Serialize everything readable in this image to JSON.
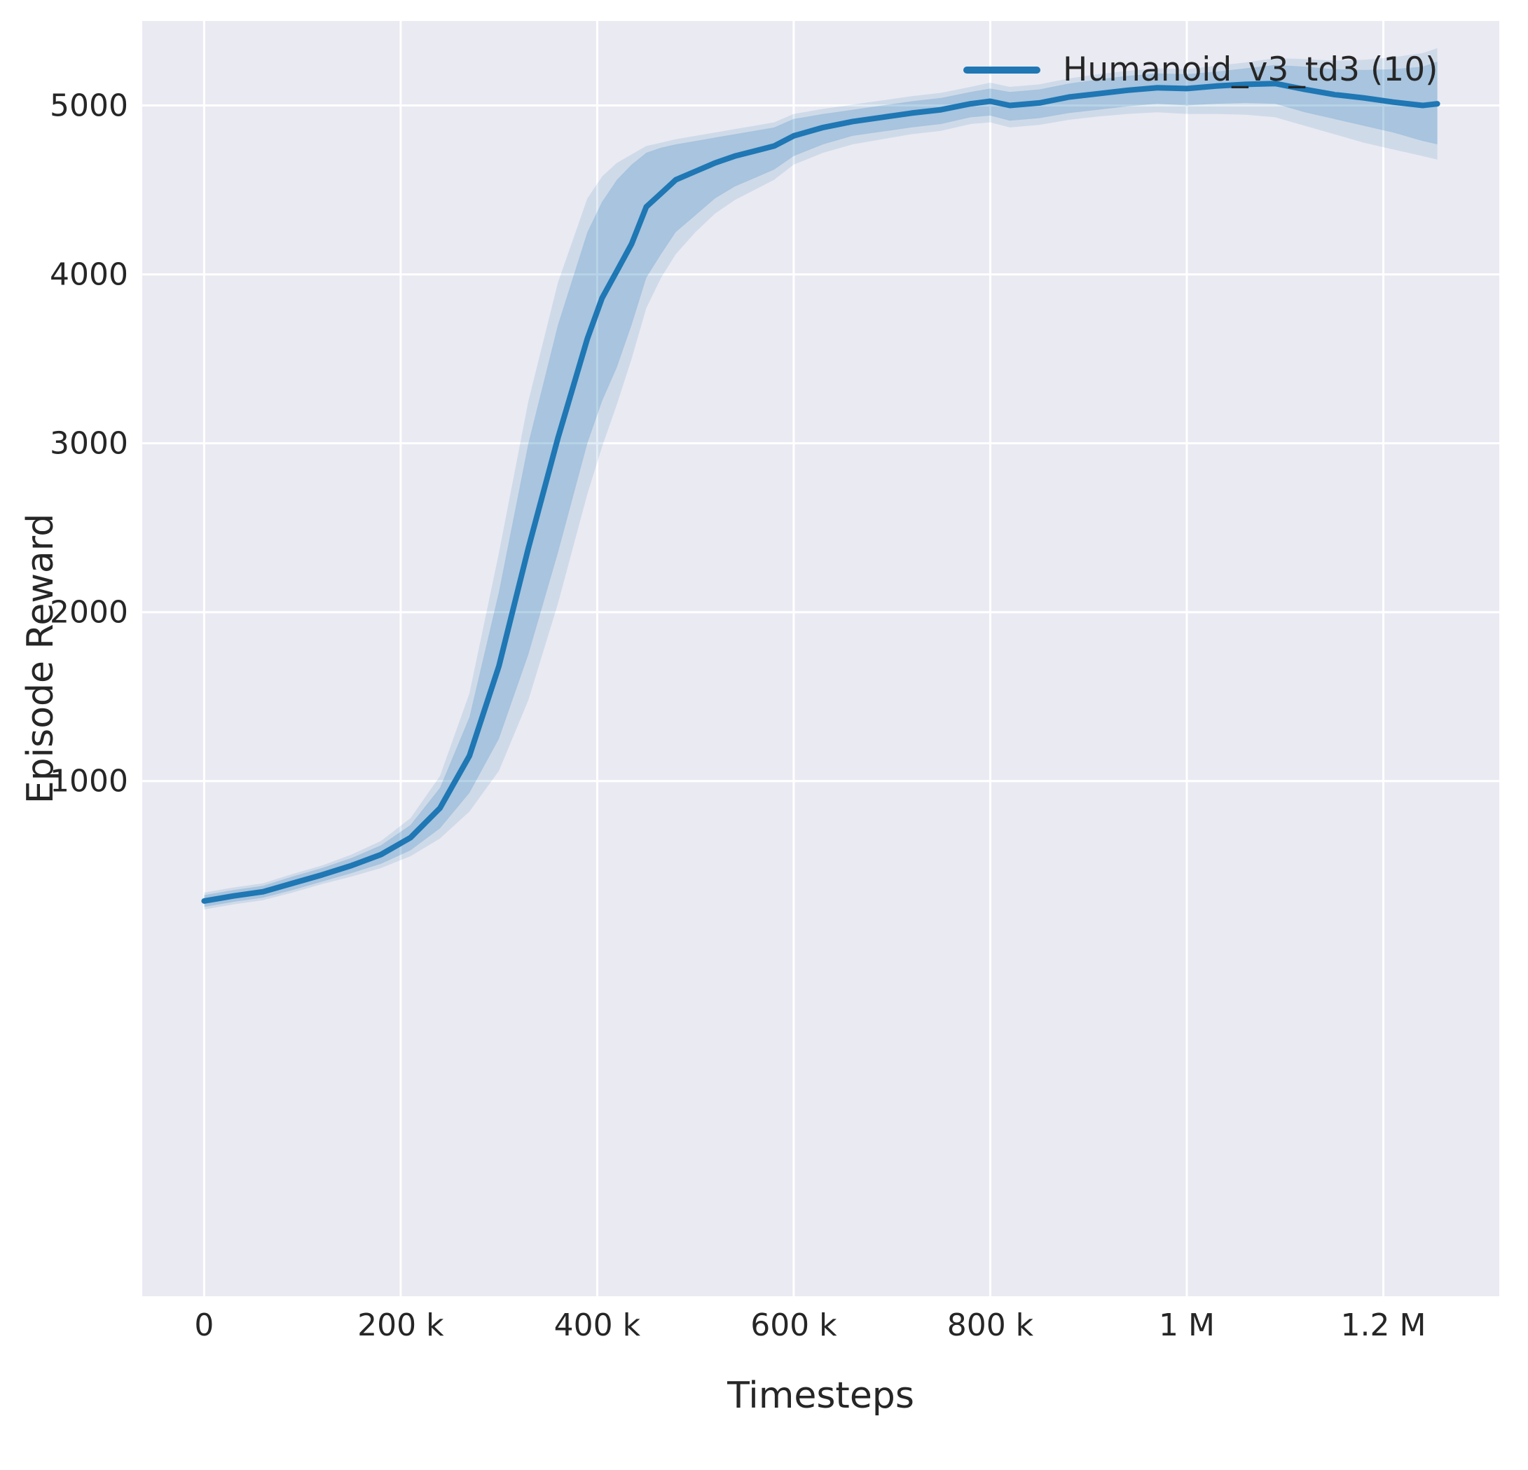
{
  "figure": {
    "background": "#ffffff",
    "plot_background": "#eaeaf2",
    "grid_color": "#ffffff",
    "text_color": "#262626"
  },
  "chart_data": {
    "type": "line",
    "title": "",
    "xlabel": "Timesteps",
    "ylabel": "Episode Reward",
    "xlim": [
      -63000,
      1318000
    ],
    "ylim": [
      -2050,
      5500
    ],
    "grid": true,
    "legend_position": "upper right",
    "x_ticks": [
      {
        "value": 0,
        "label": "0"
      },
      {
        "value": 200000,
        "label": "200 k"
      },
      {
        "value": 400000,
        "label": "400 k"
      },
      {
        "value": 600000,
        "label": "600 k"
      },
      {
        "value": 800000,
        "label": "800 k"
      },
      {
        "value": 1000000,
        "label": "1 M"
      },
      {
        "value": 1200000,
        "label": "1.2 M"
      }
    ],
    "y_ticks": [
      {
        "value": 1000,
        "label": "1000"
      },
      {
        "value": 2000,
        "label": "2000"
      },
      {
        "value": 3000,
        "label": "3000"
      },
      {
        "value": 4000,
        "label": "4000"
      },
      {
        "value": 5000,
        "label": "5000"
      }
    ],
    "x": [
      0,
      30000,
      60000,
      90000,
      120000,
      150000,
      180000,
      210000,
      240000,
      270000,
      300000,
      330000,
      360000,
      390000,
      405000,
      420000,
      435000,
      450000,
      465000,
      480000,
      500000,
      520000,
      540000,
      560000,
      580000,
      600000,
      630000,
      660000,
      690000,
      720000,
      750000,
      780000,
      800000,
      820000,
      850000,
      880000,
      910000,
      940000,
      970000,
      1000000,
      1030000,
      1060000,
      1090000,
      1120000,
      1150000,
      1180000,
      1210000,
      1240000,
      1255000
    ],
    "series": [
      {
        "name": "Humanoid_v3_td3 (10)",
        "color": "#1f77b4",
        "values": [
          290,
          320,
          345,
          395,
          445,
          500,
          565,
          665,
          840,
          1150,
          1680,
          2380,
          3030,
          3620,
          3860,
          4020,
          4180,
          4400,
          4480,
          4560,
          4610,
          4660,
          4700,
          4730,
          4760,
          4820,
          4870,
          4905,
          4930,
          4955,
          4975,
          5010,
          5025,
          5000,
          5015,
          5050,
          5070,
          5090,
          5105,
          5100,
          5115,
          5125,
          5130,
          5095,
          5065,
          5045,
          5020,
          5000,
          5010
        ],
        "bands": [
          {
            "name": "outer-band",
            "alpha": 0.13,
            "lower": [
              240,
              270,
              295,
              340,
              390,
              435,
              485,
              555,
              660,
              820,
              1060,
              1480,
              2050,
              2700,
              2980,
              3230,
              3500,
              3800,
              3980,
              4120,
              4250,
              4360,
              4440,
              4500,
              4560,
              4650,
              4720,
              4770,
              4800,
              4830,
              4850,
              4890,
              4900,
              4870,
              4885,
              4915,
              4935,
              4950,
              4960,
              4950,
              4950,
              4945,
              4930,
              4880,
              4830,
              4780,
              4740,
              4700,
              4680
            ],
            "upper": [
              340,
              370,
              395,
              450,
              500,
              565,
              645,
              780,
              1030,
              1520,
              2350,
              3250,
              3950,
              4450,
              4580,
              4660,
              4710,
              4760,
              4780,
              4800,
              4820,
              4840,
              4860,
              4880,
              4900,
              4950,
              4980,
              5005,
              5030,
              5055,
              5075,
              5110,
              5135,
              5110,
              5125,
              5160,
              5185,
              5205,
              5220,
              5215,
              5235,
              5255,
              5280,
              5275,
              5265,
              5270,
              5285,
              5310,
              5340
            ]
          },
          {
            "name": "inner-band",
            "alpha": 0.22,
            "lower": [
              255,
              285,
              310,
              355,
              405,
              455,
              510,
              590,
              720,
              930,
              1250,
              1750,
              2350,
              3000,
              3250,
              3450,
              3700,
              3980,
              4120,
              4250,
              4350,
              4450,
              4520,
              4570,
              4620,
              4700,
              4770,
              4820,
              4845,
              4870,
              4890,
              4930,
              4940,
              4910,
              4925,
              4955,
              4975,
              4995,
              5010,
              5000,
              5010,
              5015,
              5010,
              4960,
              4920,
              4880,
              4840,
              4790,
              4770
            ],
            "upper": [
              325,
              355,
              380,
              435,
              485,
              545,
              620,
              740,
              960,
              1380,
              2120,
              3000,
              3700,
              4250,
              4430,
              4560,
              4650,
              4720,
              4750,
              4770,
              4790,
              4810,
              4830,
              4850,
              4870,
              4920,
              4950,
              4975,
              5000,
              5025,
              5045,
              5080,
              5100,
              5080,
              5095,
              5130,
              5155,
              5175,
              5190,
              5185,
              5200,
              5220,
              5240,
              5230,
              5215,
              5210,
              5215,
              5230,
              5260
            ]
          }
        ]
      }
    ]
  },
  "legend": {
    "label": "Humanoid_v3_td3 (10)",
    "color": "#1f77b4"
  }
}
